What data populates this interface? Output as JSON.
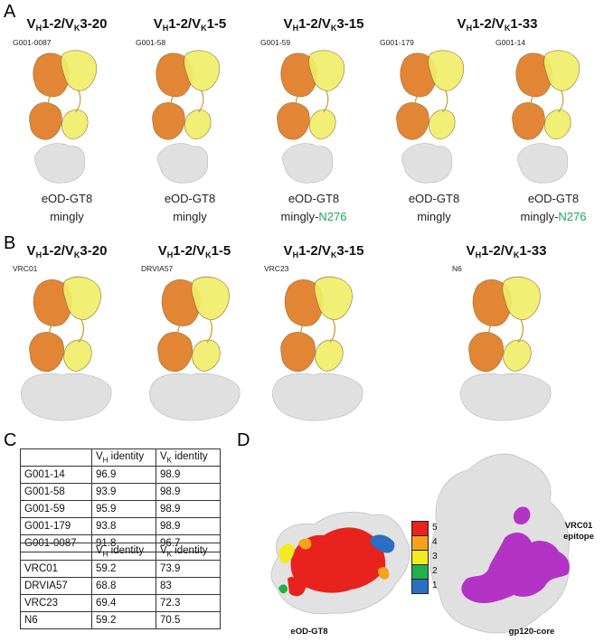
{
  "panels": {
    "a": "A",
    "b": "B",
    "c": "C",
    "d": "D"
  },
  "gene_row_a": [
    {
      "vh": "V",
      "vh_sub": "H",
      "vh_gene": "1-2/V",
      "vk_sub": "K",
      "vk_gene": "3-20"
    },
    {
      "vh": "V",
      "vh_sub": "H",
      "vh_gene": "1-2/V",
      "vk_sub": "K",
      "vk_gene": "1-5"
    },
    {
      "vh": "V",
      "vh_sub": "H",
      "vh_gene": "1-2/V",
      "vk_sub": "K",
      "vk_gene": "3-15"
    },
    {
      "vh": "V",
      "vh_sub": "H",
      "vh_gene": "1-2/V",
      "vk_sub": "K",
      "vk_gene": "1-33"
    }
  ],
  "structures_a": [
    {
      "name": "G001-0087",
      "caption1": "eOD-GT8",
      "caption2": "mingly",
      "caption2_suffix": ""
    },
    {
      "name": "G001-58",
      "caption1": "eOD-GT8",
      "caption2": "mingly",
      "caption2_suffix": ""
    },
    {
      "name": "G001-59",
      "caption1": "eOD-GT8",
      "caption2": "mingly-",
      "caption2_suffix": "N276"
    },
    {
      "name": "G001-179",
      "caption1": "eOD-GT8",
      "caption2": "mingly",
      "caption2_suffix": ""
    },
    {
      "name": "G001-14",
      "caption1": "eOD-GT8",
      "caption2": "mingly-",
      "caption2_suffix": "N276"
    }
  ],
  "gene_row_b": [
    {
      "vh": "V",
      "vh_sub": "H",
      "vh_gene": "1-2/V",
      "vk_sub": "K",
      "vk_gene": "3-20"
    },
    {
      "vh": "V",
      "vh_sub": "H",
      "vh_gene": "1-2/V",
      "vk_sub": "K",
      "vk_gene": "1-5"
    },
    {
      "vh": "V",
      "vh_sub": "H",
      "vh_gene": "1-2/V",
      "vk_sub": "K",
      "vk_gene": "3-15"
    },
    {
      "vh": "V",
      "vh_sub": "H",
      "vh_gene": "1-2/V",
      "vk_sub": "K",
      "vk_gene": "1-33"
    }
  ],
  "structures_b": [
    {
      "name": "VRC01"
    },
    {
      "name": "DRVIA57"
    },
    {
      "name": "VRC23"
    },
    {
      "name": "N6"
    }
  ],
  "table": {
    "header_vh": "V",
    "header_vh_sub": "H",
    "header_vh_rest": " identity",
    "header_vk": "V",
    "header_vk_sub": "K",
    "header_vk_rest": " identity",
    "rows_top": [
      {
        "name": "G001-14",
        "vh": "96.9",
        "vk": "98.9"
      },
      {
        "name": "G001-58",
        "vh": "93.9",
        "vk": "98.9"
      },
      {
        "name": "G001-59",
        "vh": "95.9",
        "vk": "98.9"
      },
      {
        "name": "G001-179",
        "vh": "93.8",
        "vk": "98.9"
      },
      {
        "name": "G001-0087",
        "vh": "91.8",
        "vk": "96.7"
      }
    ],
    "rows_bottom": [
      {
        "name": "VRC01",
        "vh": "59.2",
        "vk": "73.9"
      },
      {
        "name": "DRVIA57",
        "vh": "68.8",
        "vk": "83"
      },
      {
        "name": "VRC23",
        "vh": "69.4",
        "vk": "72.3"
      },
      {
        "name": "N6",
        "vh": "59.2",
        "vk": "70.5"
      }
    ]
  },
  "panel_d": {
    "legend": [
      {
        "value": "5",
        "color": "#e8231d"
      },
      {
        "value": "4",
        "color": "#f7a21b"
      },
      {
        "value": "3",
        "color": "#f3ea1f"
      },
      {
        "value": "2",
        "color": "#22b04a"
      },
      {
        "value": "1",
        "color": "#2a6fc1"
      }
    ],
    "left_caption": "eOD-GT8",
    "right_caption": "gp120-core",
    "epitope_line1": "VRC01",
    "epitope_line2": "epitope"
  },
  "colors": {
    "heavy": "#e07b24",
    "light": "#f0ee6a",
    "antigen": "#dedede",
    "epitope": "#b233c4",
    "accent_green": "#1aaa55"
  }
}
